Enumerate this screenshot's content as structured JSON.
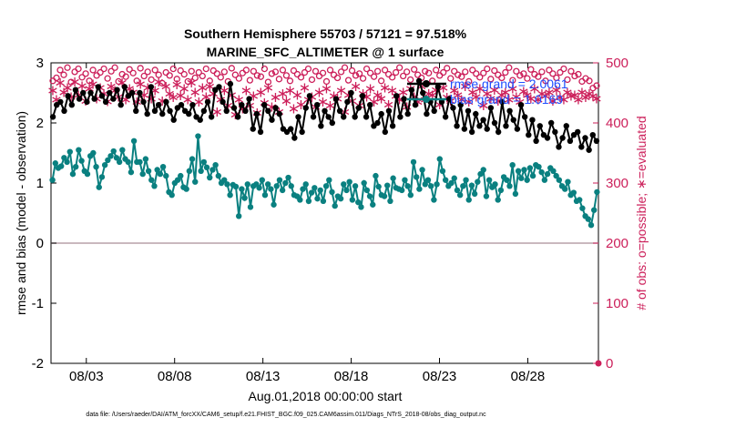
{
  "chart_data": {
    "type": "line",
    "title_line1": "Southern Hemisphere 55703 / 57121 = 97.518%",
    "title_line2": "MARINE_SFC_ALTIMETER @ 1 surface",
    "ylabel_left": "rmse and bias (model - observation)",
    "ylabel_right": "# of obs: o=possible; ∗=evaluated",
    "xlabel": "Aug.01,2018 00:00:00 start",
    "footer": "data file: /Users/raeder/DAI/ATM_forcXX/CAM6_setup/f.e21.FHIST_BGC.f09_025.CAM6assim.011/Diags_NTrS_2018-08/obs_diag_output.nc",
    "x_start_day": 1,
    "x_range": [
      1,
      32
    ],
    "ylim_left": [
      -2,
      3
    ],
    "ylim_right": [
      0,
      500
    ],
    "left_ticks": [
      "-2",
      "-1",
      "0",
      "1",
      "2",
      "3"
    ],
    "right_ticks": [
      "0",
      "100",
      "200",
      "300",
      "400",
      "500"
    ],
    "x_ticks": [
      {
        "day": 3,
        "label": "08/03"
      },
      {
        "day": 8,
        "label": "08/08"
      },
      {
        "day": 13,
        "label": "08/13"
      },
      {
        "day": 18,
        "label": "08/18"
      },
      {
        "day": 23,
        "label": "08/23"
      },
      {
        "day": 28,
        "label": "08/28"
      }
    ],
    "legend": [
      {
        "name": "rmse",
        "label": "rmse grand = 2.0061",
        "color": "#000000"
      },
      {
        "name": "bias",
        "label": "bias grand = 1.0169",
        "color": "#0a8080"
      }
    ],
    "colors": {
      "rmse": "#000000",
      "bias": "#0a8080",
      "obs": "#cc1f5a",
      "zero_line": "#b9a0a8"
    },
    "series": [
      {
        "name": "rmse",
        "axis": "left",
        "values": [
          2.1,
          2.3,
          2.35,
          2.2,
          2.45,
          2.3,
          2.55,
          2.4,
          2.5,
          2.35,
          2.5,
          2.4,
          2.6,
          2.45,
          2.35,
          2.5,
          2.4,
          2.55,
          2.3,
          2.6,
          2.45,
          2.5,
          2.2,
          2.5,
          2.35,
          2.15,
          2.6,
          2.2,
          2.3,
          2.15,
          2.35,
          2.2,
          2.05,
          2.25,
          2.3,
          2.2,
          2.15,
          2.3,
          2.1,
          2.05,
          2.2,
          2.35,
          2.1,
          2.55,
          2.6,
          2.35,
          2.2,
          2.65,
          2.25,
          2.1,
          2.3,
          2.2,
          2.4,
          1.9,
          2.15,
          1.85,
          2.3,
          2.2,
          2.05,
          2.25,
          2.15,
          1.9,
          1.85,
          1.9,
          1.75,
          2.1,
          1.85,
          2.25,
          2.45,
          2.1,
          2.3,
          1.95,
          2.2,
          2.1,
          2.0,
          2.4,
          2.2,
          2.1,
          2.35,
          2.5,
          2.1,
          2.25,
          2.45,
          2.1,
          2.3,
          1.95,
          2.0,
          2.15,
          1.85,
          2.2,
          1.95,
          2.45,
          2.1,
          2.4,
          2.15,
          2.55,
          2.3,
          2.7,
          2.5,
          2.15,
          2.35,
          2.2,
          2.6,
          2.35,
          2.1,
          2.4,
          2.25,
          1.95,
          2.3,
          1.9,
          2.2,
          1.85,
          2.15,
          1.95,
          2.05,
          1.9,
          2.25,
          2.0,
          1.85,
          2.35,
          1.95,
          2.2,
          2.05,
          1.9,
          2.3,
          2.1,
          1.8,
          2.05,
          1.7,
          1.95,
          1.8,
          1.75,
          2.0,
          1.85,
          1.6,
          1.75,
          1.95,
          1.7,
          1.8,
          1.85,
          1.6,
          1.75,
          1.55,
          1.8,
          1.7
        ]
      },
      {
        "name": "bias",
        "axis": "left",
        "values": [
          1.05,
          1.33,
          1.25,
          1.28,
          1.42,
          1.35,
          1.52,
          1.15,
          1.27,
          1.55,
          1.37,
          1.2,
          1.15,
          1.45,
          1.5,
          1.27,
          0.93,
          1.1,
          1.3,
          1.38,
          1.45,
          1.53,
          1.42,
          1.35,
          1.55,
          1.4,
          1.35,
          1.18,
          1.7,
          1.35,
          1.35,
          1.15,
          1.4,
          1.2,
          1.05,
          0.95,
          1.22,
          1.15,
          1.27,
          1.12,
          0.85,
          0.8,
          1.0,
          1.05,
          1.12,
          0.93,
          0.9,
          1.2,
          1.4,
          1.02,
          1.78,
          1.2,
          1.35,
          1.26,
          1.09,
          1.22,
          1.3,
          1.12,
          1.0,
          1.05,
          0.98,
          0.8,
          0.97,
          0.94,
          0.45,
          0.9,
          0.75,
          0.98,
          0.6,
          0.95,
          0.98,
          0.92,
          1.05,
          0.8,
          0.98,
          0.9,
          0.64,
          0.95,
          1.05,
          0.88,
          1.0,
          1.09,
          0.95,
          0.8,
          0.78,
          0.72,
          0.9,
          0.98,
          0.7,
          0.84,
          0.92,
          0.74,
          0.88,
          0.7,
          0.95,
          1.05,
          0.85,
          0.62,
          0.78,
          0.74,
          0.98,
          0.88,
          1.02,
          0.72,
          0.95,
          0.68,
          0.6,
          1.0,
          0.88,
          0.78,
          0.64,
          1.12,
          0.94,
          0.8,
          0.78,
          0.96,
          0.7,
          1.08,
          0.92,
          0.9,
          0.88,
          1.05,
          0.95,
          0.8,
          1.35,
          1.1,
          0.9,
          1.22,
          0.98,
          1.05,
          0.95,
          0.72,
          0.98,
          1.4,
          1.2,
          1.05,
          0.95,
          1.0,
          1.08,
          0.88,
          0.8,
          0.95,
          1.05,
          0.72,
          0.96,
          0.82,
          1.02,
          1.15,
          1.22,
          0.78,
          1.05,
          0.93,
          0.98,
          0.72,
          0.88,
          1.1,
          1.05,
          0.95,
          1.3,
          0.82,
          1.2,
          1.08,
          1.22,
          1.05,
          1.25,
          1.12,
          1.3,
          1.27,
          1.18,
          1.05,
          1.15,
          1.25,
          1.2,
          1.12,
          1.05,
          0.95,
          0.9,
          1.02,
          0.8,
          0.84,
          0.7,
          0.72,
          0.58,
          0.45,
          0.4,
          0.3,
          0.55,
          0.85
        ]
      },
      {
        "name": "possible",
        "axis": "right",
        "marker": "o",
        "values": [
          470,
          475,
          488,
          480,
          492,
          468,
          485,
          490,
          476,
          482,
          470,
          488,
          479,
          484,
          490,
          474,
          486,
          492,
          469,
          481,
          477,
          489,
          483,
          470,
          491,
          478,
          485,
          472,
          488,
          480,
          466,
          484,
          479,
          490,
          473,
          487,
          481,
          469,
          486,
          475,
          484,
          478,
          490,
          470,
          487,
          482,
          476,
          485,
          469,
          491,
          480,
          474,
          483,
          488,
          471,
          486,
          479,
          477,
          490,
          468,
          482,
          485,
          473,
          488,
          479,
          470,
          487,
          481,
          476,
          484,
          490,
          472,
          486,
          478,
          483,
          469,
          488,
          480,
          475,
          485,
          492,
          471,
          487,
          479,
          482,
          474,
          490,
          483,
          477,
          486,
          470,
          488,
          481,
          476,
          484,
          492,
          478,
          485,
          472,
          489,
          480,
          475,
          486,
          483,
          470,
          488,
          479,
          484,
          491,
          474,
          486,
          480,
          477,
          485,
          469,
          488,
          482,
          476,
          483,
          490,
          473,
          487,
          480,
          475,
          484,
          492,
          471,
          486,
          479,
          482,
          474,
          489,
          481,
          477,
          485,
          470,
          488,
          482,
          475,
          484,
          490,
          472,
          486,
          478,
          481,
          469,
          474,
          470,
          458,
          462
        ]
      },
      {
        "name": "evaluated",
        "axis": "right",
        "marker": "*",
        "values": [
          455,
          440,
          468,
          452,
          460,
          445,
          470,
          448,
          463,
          438,
          458,
          466,
          442,
          460,
          450,
          437,
          462,
          455,
          445,
          468,
          440,
          458,
          452,
          436,
          466,
          448,
          460,
          442,
          455,
          470,
          438,
          462,
          450,
          444,
          465,
          447,
          458,
          440,
          468,
          452,
          436,
          460,
          445,
          462,
          450,
          420,
          440,
          455,
          430,
          448,
          415,
          440,
          425,
          455,
          430,
          446,
          418,
          452,
          435,
          460,
          428,
          444,
          420,
          450,
          438,
          455,
          425,
          448,
          432,
          460,
          440,
          445,
          428,
          452,
          436,
          458,
          430,
          446,
          442,
          455,
          420,
          448,
          438,
          462,
          430,
          450,
          445,
          458,
          436,
          448,
          442,
          460,
          432,
          455,
          446,
          440,
          452,
          428,
          458,
          445,
          436,
          462,
          440,
          450,
          448,
          456,
          432,
          460,
          444,
          438,
          455,
          448,
          440,
          462,
          436,
          452,
          445,
          458,
          430,
          450,
          442,
          456,
          438,
          448,
          452,
          440,
          458,
          445,
          436,
          454,
          448,
          442,
          458,
          440,
          450,
          446,
          452,
          438,
          456,
          444,
          440,
          452,
          446,
          448,
          440,
          452,
          444,
          450,
          446,
          442
        ]
      }
    ]
  }
}
